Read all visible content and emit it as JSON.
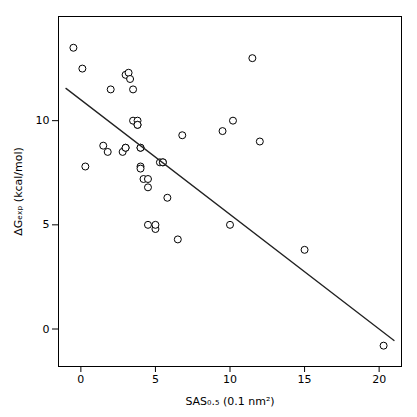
{
  "chart_data": {
    "type": "scatter",
    "xlabel": "SAS₀.₅ (0.1 nm²)",
    "ylabel": "ΔGₑₓₚ (kcal/mol)",
    "series": [
      {
        "type": "scatter",
        "marker": "circle",
        "color": "black",
        "x": [
          -0.5,
          0.1,
          1.5,
          2.0,
          2.8,
          3.0,
          3.0,
          3.2,
          3.3,
          3.5,
          3.5,
          3.8,
          3.8,
          3.8,
          4.0,
          4.0,
          4.0,
          4.2,
          4.5,
          4.5,
          4.5,
          5.0,
          5.0,
          5.3,
          5.5,
          5.5,
          5.8,
          6.5,
          6.8,
          9.5,
          10.0,
          10.2,
          11.5,
          12.0,
          15.0,
          20.3,
          0.3,
          1.8,
          3.0,
          4.0
        ],
        "values": [
          13.5,
          12.5,
          8.8,
          11.5,
          8.5,
          8.7,
          12.2,
          12.3,
          12.0,
          11.5,
          10.0,
          10.0,
          9.8,
          9.8,
          8.7,
          7.8,
          7.7,
          7.2,
          7.2,
          6.8,
          5.0,
          4.8,
          5.0,
          8.0,
          8.0,
          8.0,
          6.3,
          4.3,
          9.3,
          9.5,
          5.0,
          10.0,
          13.0,
          9.0,
          3.8,
          -0.8,
          7.8,
          8.5,
          8.7,
          8.7
        ]
      },
      {
        "type": "line",
        "line_style": "solid",
        "color": "#222222",
        "x": [
          -1.0,
          21.0
        ],
        "values": [
          11.55,
          -0.55
        ]
      }
    ],
    "xlim": [
      -1.5,
      21.5
    ],
    "ylim": [
      -1.8,
      15.0
    ],
    "xticks": [
      0,
      5,
      10,
      15,
      20
    ],
    "yticks": [
      0,
      5,
      10
    ],
    "grid": false
  }
}
